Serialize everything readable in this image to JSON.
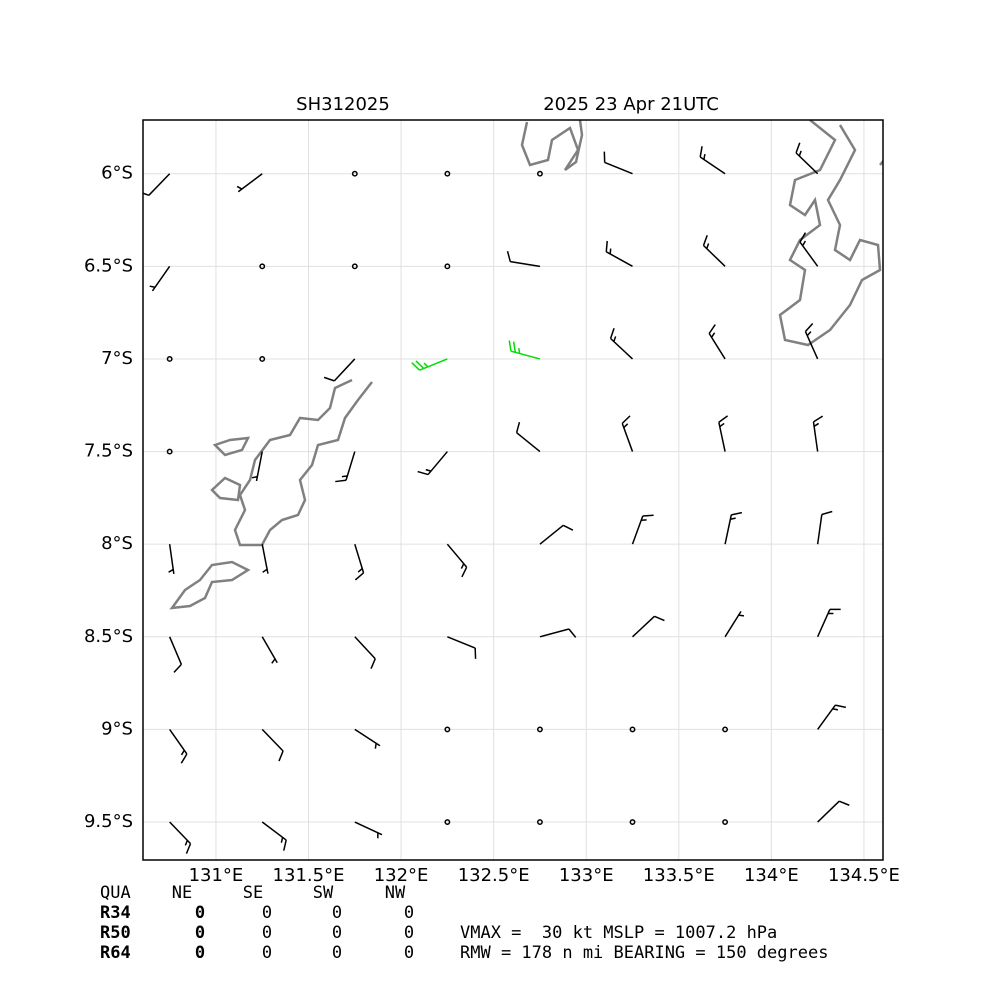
{
  "chart_data": {
    "type": "barbs",
    "title": "SH312025",
    "subtitle": "2025 23 Apr 21UTC",
    "xlim": [
      130.606,
      134.603
    ],
    "ylim": [
      -9.705,
      -5.71
    ],
    "xticks": [
      {
        "value": 131,
        "label": "131°E"
      },
      {
        "value": 131.5,
        "label": "131.5°E"
      },
      {
        "value": 132,
        "label": "132°E"
      },
      {
        "value": 132.5,
        "label": "132.5°E"
      },
      {
        "value": 133,
        "label": "133°E"
      },
      {
        "value": 133.5,
        "label": "133.5°E"
      },
      {
        "value": 134,
        "label": "134°E"
      },
      {
        "value": 134.5,
        "label": "134.5°E"
      }
    ],
    "yticks": [
      {
        "value": -6,
        "label": "6°S"
      },
      {
        "value": -6.5,
        "label": "6.5°S"
      },
      {
        "value": -7,
        "label": "7°S"
      },
      {
        "value": -7.5,
        "label": "7.5°S"
      },
      {
        "value": -8,
        "label": "8°S"
      },
      {
        "value": -8.5,
        "label": "8.5°S"
      },
      {
        "value": -9,
        "label": "9°S"
      },
      {
        "value": -9.5,
        "label": "9.5°S"
      }
    ],
    "grid": true,
    "series": [
      {
        "color": "#000000",
        "x": [
          130.75,
          131.25,
          131.75,
          132.25,
          132.75,
          133.25,
          133.75,
          134.25,
          130.75,
          131.25,
          131.75,
          132.25,
          132.75,
          133.25,
          133.75,
          134.25,
          130.75,
          131.25,
          131.75,
          133.25,
          133.75,
          134.25,
          130.75,
          131.25,
          131.75,
          132.25,
          132.75,
          133.25,
          133.75,
          134.25,
          130.75,
          131.25,
          131.75,
          132.25,
          132.75,
          133.25,
          133.75,
          134.25,
          130.75,
          131.25,
          131.75,
          132.25,
          132.75,
          133.25,
          133.75,
          134.25,
          130.75,
          131.25,
          131.75,
          132.25,
          132.75,
          133.25,
          133.75,
          134.25,
          130.75,
          131.25,
          131.75,
          132.25,
          132.75,
          133.25,
          133.75,
          134.25
        ],
        "y": [
          -6,
          -6,
          -6,
          -6,
          -6,
          -6,
          -6,
          -6,
          -6.5,
          -6.5,
          -6.5,
          -6.5,
          -6.5,
          -6.5,
          -6.5,
          -6.5,
          -7,
          -7,
          -7,
          -7,
          -7,
          -7,
          -7.5,
          -7.5,
          -7.5,
          -7.5,
          -7.5,
          -7.5,
          -7.5,
          -7.5,
          -8,
          -8,
          -8,
          -8,
          -8,
          -8,
          -8,
          -8,
          -8.5,
          -8.5,
          -8.5,
          -8.5,
          -8.5,
          -8.5,
          -8.5,
          -8.5,
          -9,
          -9,
          -9,
          -9,
          -9,
          -9,
          -9,
          -9,
          -9.5,
          -9.5,
          -9.5,
          -9.5,
          -9.5,
          -9.5,
          -9.5,
          -9.5
        ],
        "direction": [
          224,
          233,
          245,
          260,
          277,
          292,
          304,
          314,
          215,
          224,
          237,
          256,
          279,
          299,
          314,
          324,
          203,
          210,
          223,
          313,
          328,
          336,
          188,
          191,
          197,
          220,
          309,
          340,
          348,
          352,
          172,
          169,
          163,
          140,
          51,
          20,
          12,
          8,
          157,
          150,
          137,
          112,
          75,
          47,
          32,
          24,
          145,
          136,
          123,
          104,
          81,
          61,
          46,
          36,
          136,
          127,
          115,
          100,
          83,
          68,
          56,
          46
        ],
        "speed": [
          10,
          5,
          0,
          0,
          0,
          10,
          15,
          15,
          5,
          0,
          0,
          0,
          10,
          15,
          15,
          15,
          0,
          0,
          10,
          15,
          15,
          15,
          0,
          5,
          15,
          15,
          10,
          15,
          15,
          15,
          5,
          5,
          15,
          15,
          10,
          15,
          15,
          10,
          10,
          5,
          10,
          10,
          10,
          10,
          5,
          15,
          15,
          10,
          5,
          0,
          0,
          0,
          0,
          15,
          15,
          15,
          5,
          0,
          0,
          0,
          0,
          10
        ]
      },
      {
        "color": "#00dd00",
        "x": [
          132.25,
          132.75
        ],
        "y": [
          -7,
          -7
        ],
        "direction": [
          248,
          285
        ],
        "speed": [
          25,
          25
        ]
      }
    ]
  },
  "table": {
    "header": [
      "QUA",
      "NE",
      "SE",
      "SW",
      "NW"
    ],
    "rows": [
      [
        "R34",
        0,
        0,
        0,
        0
      ],
      [
        "R50",
        0,
        0,
        0,
        0
      ],
      [
        "R64",
        0,
        0,
        0,
        0
      ]
    ]
  },
  "annotations": [
    "VMAX =  30 kt MSLP = 1007.2 hPa",
    "RMW = 178 n mi BEARING = 150 degrees"
  ]
}
